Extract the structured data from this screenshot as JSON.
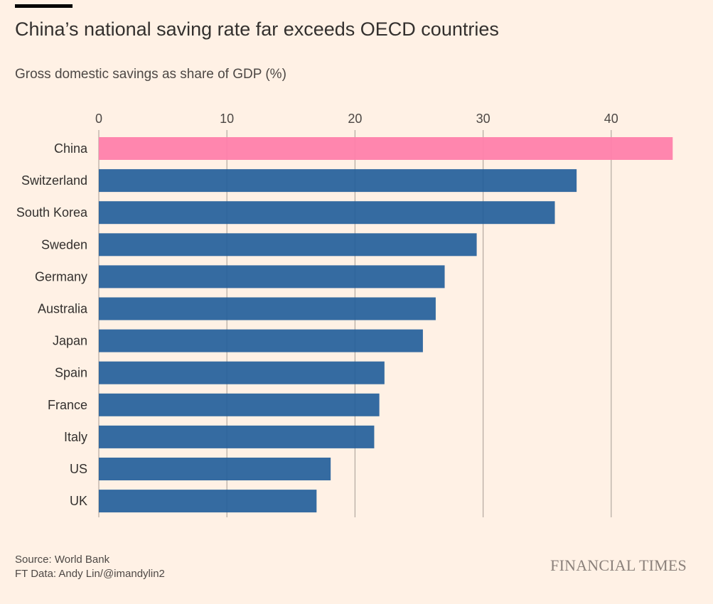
{
  "header": {
    "title": "China’s national saving rate far exceeds OECD countries",
    "subtitle": "Gross domestic savings as share of GDP (%)"
  },
  "chart_data": {
    "type": "bar",
    "orientation": "horizontal",
    "title": "China’s national saving rate far exceeds OECD countries",
    "subtitle": "Gross domestic savings as share of GDP (%)",
    "xlabel": "",
    "ylabel": "",
    "xlim": [
      0,
      45
    ],
    "x_ticks": [
      0,
      10,
      20,
      30,
      40
    ],
    "grid": true,
    "categories": [
      "China",
      "Switzerland",
      "South Korea",
      "Sweden",
      "Germany",
      "Australia",
      "Japan",
      "Spain",
      "France",
      "Italy",
      "US",
      "UK"
    ],
    "values": [
      44.8,
      37.3,
      35.6,
      29.5,
      27.0,
      26.3,
      25.3,
      22.3,
      21.9,
      21.5,
      18.1,
      17.0
    ],
    "highlight": "China",
    "colors": {
      "highlight": "#ff7fab",
      "default": "#1f5c99",
      "grid": "#b3a9a0"
    }
  },
  "footer": {
    "source": "Source: World Bank",
    "credit": "FT Data: Andy Lin/@imandylin2",
    "brand": "FINANCIAL TIMES"
  }
}
